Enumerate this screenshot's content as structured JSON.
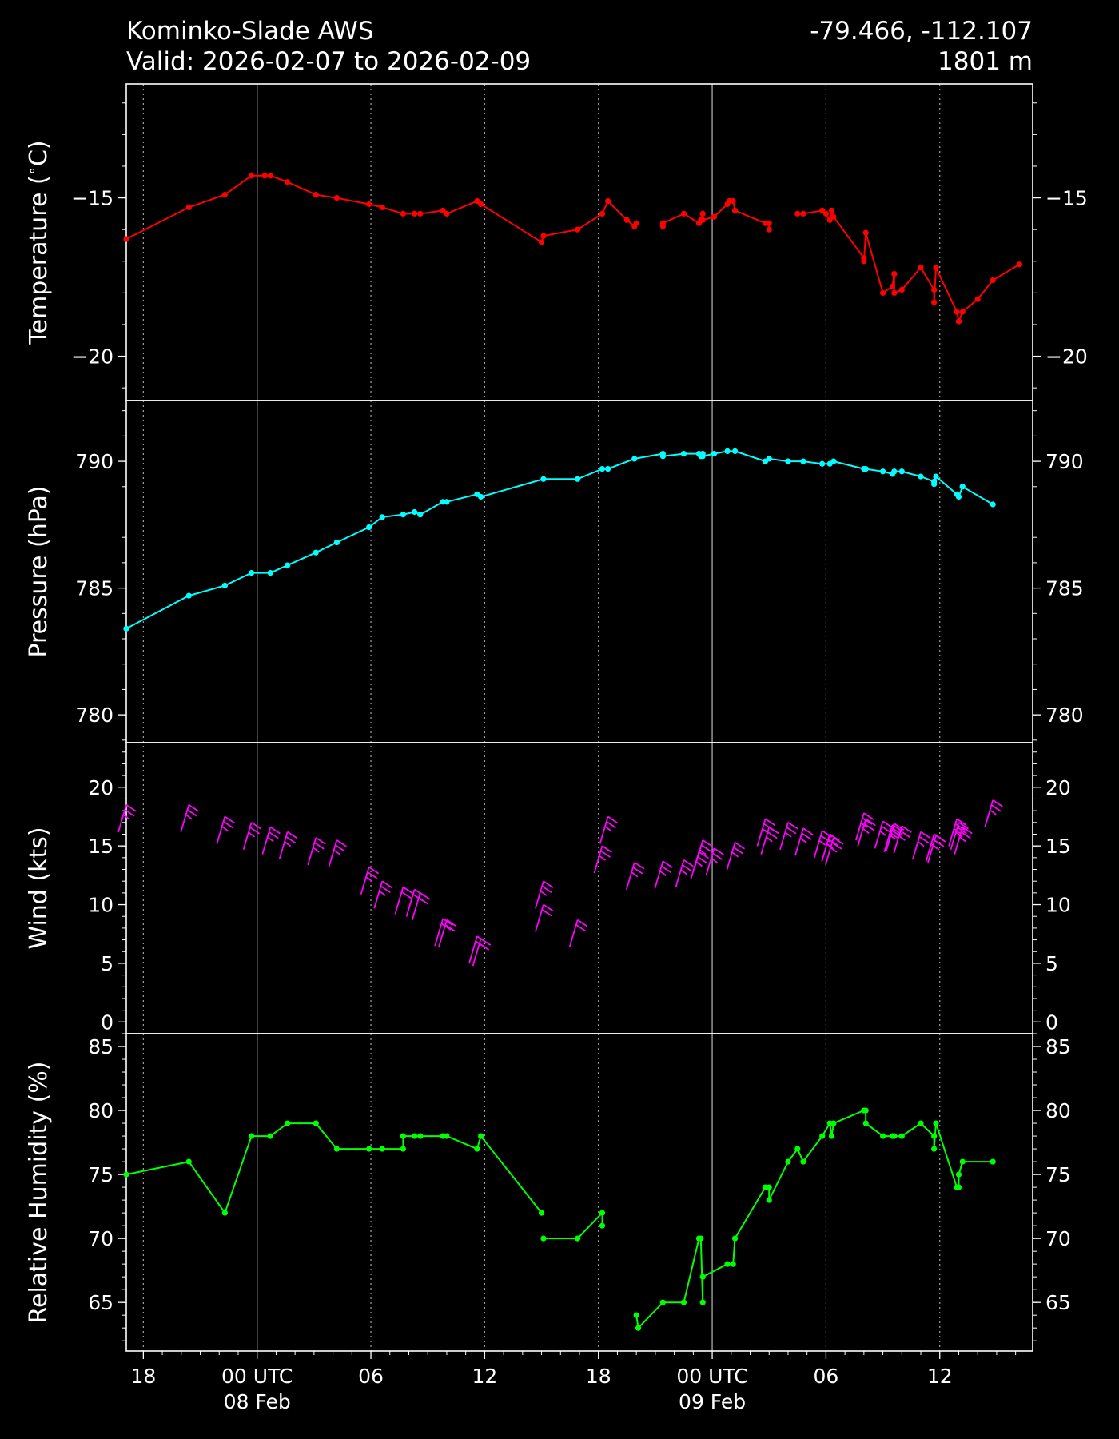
{
  "header": {
    "station": "Kominko-Slade AWS",
    "valid": "Valid: 2026-02-07 to 2026-02-09",
    "coords": "-79.466, -112.107",
    "elevation": "1801 m"
  },
  "colors": {
    "background": "#000000",
    "axes": "#ffffff",
    "grid_major": "#a0a0a0",
    "grid_minor": "#a0a0a0",
    "temperature": "#ff0000",
    "pressure": "#00ffff",
    "wind": "#ff00ff",
    "humidity": "#00ff00"
  },
  "chart_data": {
    "type": "line",
    "shared_x": {
      "unit": "hours from 00 UTC 08 Feb 2026",
      "range": [
        -6.9,
        40.9
      ],
      "major_ticks": [
        {
          "value": -6,
          "label": "18"
        },
        {
          "value": 0,
          "label": "00 UTC",
          "sublabel": "08 Feb"
        },
        {
          "value": 6,
          "label": "06"
        },
        {
          "value": 12,
          "label": "12"
        },
        {
          "value": 18,
          "label": "18"
        },
        {
          "value": 24,
          "label": "00 UTC",
          "sublabel": "09 Feb"
        },
        {
          "value": 30,
          "label": "06"
        },
        {
          "value": 36,
          "label": "12"
        }
      ],
      "day_lines": [
        0,
        24
      ]
    },
    "panels": [
      {
        "id": "temperature",
        "type": "line",
        "ylabel": "Temperature ($^\\circ$C)",
        "ylabel_parts": [
          "Temperature (",
          "∘",
          "C)"
        ],
        "ylim": [
          -21.4,
          -11.4
        ],
        "yticks": [
          -15,
          -20
        ],
        "ytick_labels": [
          "−15",
          "−20"
        ],
        "minor_step": 1,
        "color": "#ff0000",
        "segments": [
          [
            [
              -6.9,
              -16.3
            ],
            [
              -3.6,
              -15.3
            ],
            [
              -1.7,
              -14.9
            ],
            [
              -0.3,
              -14.3
            ],
            [
              0.4,
              -14.3
            ],
            [
              0.7,
              -14.3
            ],
            [
              1.6,
              -14.5
            ],
            [
              3.1,
              -14.9
            ],
            [
              4.2,
              -15.0
            ],
            [
              5.9,
              -15.2
            ],
            [
              6.6,
              -15.3
            ],
            [
              7.7,
              -15.5
            ],
            [
              8.3,
              -15.5
            ],
            [
              8.6,
              -15.5
            ],
            [
              9.8,
              -15.4
            ],
            [
              10.0,
              -15.5
            ],
            [
              11.6,
              -15.1
            ],
            [
              11.8,
              -15.2
            ],
            [
              15.0,
              -16.4
            ],
            [
              15.1,
              -16.2
            ],
            [
              16.9,
              -16.0
            ],
            [
              18.2,
              -15.5
            ],
            [
              18.2,
              -15.5
            ],
            [
              18.5,
              -15.1
            ],
            [
              19.5,
              -15.7
            ],
            [
              19.9,
              -15.9
            ],
            [
              20.0,
              -15.8
            ]
          ],
          [
            [
              21.4,
              -15.9
            ],
            [
              21.4,
              -15.8
            ],
            [
              22.5,
              -15.5
            ],
            [
              23.3,
              -15.8
            ],
            [
              23.4,
              -15.7
            ],
            [
              23.5,
              -15.5
            ],
            [
              23.5,
              -15.7
            ],
            [
              24.1,
              -15.6
            ],
            [
              24.8,
              -15.2
            ],
            [
              24.9,
              -15.1
            ],
            [
              25.1,
              -15.1
            ],
            [
              25.2,
              -15.4
            ],
            [
              26.8,
              -15.8
            ],
            [
              27.0,
              -15.8
            ],
            [
              27.0,
              -16.0
            ]
          ],
          [
            [
              28.5,
              -15.5
            ],
            [
              28.8,
              -15.5
            ],
            [
              29.8,
              -15.4
            ],
            [
              30.0,
              -15.5
            ],
            [
              30.2,
              -15.7
            ],
            [
              30.3,
              -15.4
            ],
            [
              30.4,
              -15.6
            ],
            [
              32.0,
              -16.9
            ],
            [
              32.0,
              -17.0
            ],
            [
              32.1,
              -16.1
            ],
            [
              33.0,
              -18.0
            ],
            [
              33.5,
              -17.8
            ],
            [
              33.6,
              -17.4
            ],
            [
              33.6,
              -18.0
            ],
            [
              34.0,
              -17.9
            ],
            [
              35.0,
              -17.2
            ],
            [
              35.7,
              -17.9
            ],
            [
              35.7,
              -18.3
            ],
            [
              35.8,
              -17.2
            ],
            [
              36.9,
              -18.6
            ],
            [
              37.0,
              -18.9
            ],
            [
              37.0,
              -18.9
            ],
            [
              37.2,
              -18.6
            ],
            [
              38.0,
              -18.2
            ],
            [
              38.8,
              -17.6
            ],
            [
              40.2,
              -17.1
            ]
          ]
        ]
      },
      {
        "id": "pressure",
        "type": "line",
        "ylabel": "Pressure (hPa)",
        "ylim": [
          778.9,
          792.4
        ],
        "yticks": [
          790,
          785,
          780
        ],
        "ytick_labels": [
          "790",
          "785",
          "780"
        ],
        "minor_step": 1,
        "color": "#00ffff",
        "segments": [
          [
            [
              -6.9,
              783.4
            ],
            [
              -3.6,
              784.7
            ],
            [
              -1.7,
              785.1
            ],
            [
              -0.3,
              785.6
            ],
            [
              0.7,
              785.6
            ],
            [
              1.6,
              785.9
            ],
            [
              3.1,
              786.4
            ],
            [
              4.2,
              786.8
            ],
            [
              5.9,
              787.4
            ],
            [
              6.6,
              787.8
            ],
            [
              7.7,
              787.9
            ],
            [
              8.3,
              788.0
            ],
            [
              8.6,
              787.9
            ],
            [
              9.8,
              788.4
            ],
            [
              10.0,
              788.4
            ],
            [
              11.6,
              788.7
            ],
            [
              11.8,
              788.6
            ],
            [
              15.1,
              789.3
            ],
            [
              16.9,
              789.3
            ],
            [
              18.2,
              789.7
            ],
            [
              18.5,
              789.7
            ],
            [
              19.9,
              790.1
            ],
            [
              21.4,
              790.3
            ],
            [
              21.4,
              790.2
            ],
            [
              22.5,
              790.3
            ],
            [
              23.3,
              790.3
            ],
            [
              23.4,
              790.2
            ],
            [
              23.5,
              790.3
            ],
            [
              23.5,
              790.2
            ],
            [
              24.1,
              790.3
            ],
            [
              24.8,
              790.4
            ],
            [
              25.2,
              790.4
            ],
            [
              26.8,
              790.0
            ],
            [
              27.0,
              790.1
            ],
            [
              28.0,
              790.0
            ],
            [
              28.8,
              790.0
            ],
            [
              29.8,
              789.9
            ],
            [
              30.2,
              789.9
            ],
            [
              30.4,
              790.0
            ],
            [
              32.0,
              789.7
            ],
            [
              32.1,
              789.7
            ],
            [
              33.0,
              789.6
            ],
            [
              33.5,
              789.5
            ],
            [
              33.6,
              789.6
            ],
            [
              34.0,
              789.6
            ],
            [
              35.0,
              789.4
            ],
            [
              35.7,
              789.2
            ],
            [
              35.7,
              789.1
            ],
            [
              35.8,
              789.4
            ],
            [
              36.9,
              788.7
            ],
            [
              37.0,
              788.6
            ],
            [
              37.2,
              789.0
            ],
            [
              37.2,
              789.0
            ],
            [
              38.8,
              788.3
            ]
          ]
        ]
      },
      {
        "id": "wind",
        "type": "barbs",
        "ylabel": "Wind (kts)",
        "ylim": [
          -1.0,
          23.8
        ],
        "yticks": [
          20,
          15,
          10,
          5,
          0
        ],
        "ytick_labels": [
          "20",
          "15",
          "10",
          "5",
          "0"
        ],
        "minor_step": 1,
        "color": "#ff00ff",
        "barbs": [
          [
            -6.9,
            18.5
          ],
          [
            -3.6,
            18.5
          ],
          [
            -1.7,
            17.5
          ],
          [
            -0.3,
            17.0
          ],
          [
            0.7,
            16.6
          ],
          [
            1.6,
            16.2
          ],
          [
            3.1,
            15.7
          ],
          [
            4.2,
            15.5
          ],
          [
            5.9,
            13.2
          ],
          [
            6.6,
            12.0
          ],
          [
            7.7,
            11.5
          ],
          [
            8.3,
            11.3
          ],
          [
            8.6,
            11.0
          ],
          [
            9.8,
            8.8
          ],
          [
            10.0,
            8.7
          ],
          [
            11.6,
            7.3
          ],
          [
            11.8,
            7.1
          ],
          [
            15.1,
            10.0
          ],
          [
            15.1,
            12.0
          ],
          [
            16.9,
            8.7
          ],
          [
            18.2,
            15.0
          ],
          [
            18.5,
            17.5
          ],
          [
            19.9,
            13.6
          ],
          [
            21.4,
            13.7
          ],
          [
            22.5,
            13.8
          ],
          [
            23.3,
            14.5
          ],
          [
            23.5,
            15.5
          ],
          [
            24.1,
            14.8
          ],
          [
            25.2,
            15.3
          ],
          [
            26.8,
            17.3
          ],
          [
            27.0,
            16.6
          ],
          [
            28.0,
            17.0
          ],
          [
            28.8,
            16.5
          ],
          [
            29.8,
            16.3
          ],
          [
            30.2,
            16.0
          ],
          [
            30.4,
            15.7
          ],
          [
            32.0,
            17.8
          ],
          [
            32.1,
            17.3
          ],
          [
            33.0,
            17.1
          ],
          [
            33.5,
            16.8
          ],
          [
            33.6,
            16.9
          ],
          [
            34.0,
            16.7
          ],
          [
            35.0,
            16.2
          ],
          [
            35.7,
            16.0
          ],
          [
            35.8,
            15.9
          ],
          [
            36.9,
            17.3
          ],
          [
            37.0,
            17.0
          ],
          [
            37.2,
            16.6
          ],
          [
            38.8,
            18.9
          ]
        ]
      },
      {
        "id": "humidity",
        "type": "line",
        "ylabel": "Relative Humidity (%)",
        "ylim": [
          61.2,
          86.0
        ],
        "yticks": [
          85,
          80,
          75,
          70,
          65
        ],
        "ytick_labels": [
          "85",
          "80",
          "75",
          "70",
          "65"
        ],
        "minor_step": 1,
        "color": "#00ff00",
        "segments": [
          [
            [
              -6.9,
              75
            ],
            [
              -3.6,
              76
            ],
            [
              -1.7,
              72
            ],
            [
              -0.3,
              78
            ],
            [
              0.7,
              78
            ],
            [
              1.6,
              79
            ],
            [
              3.1,
              79
            ],
            [
              4.2,
              77
            ],
            [
              5.9,
              77
            ],
            [
              6.6,
              77
            ],
            [
              7.7,
              77
            ],
            [
              7.7,
              78
            ],
            [
              8.3,
              78
            ],
            [
              8.6,
              78
            ],
            [
              9.8,
              78
            ],
            [
              10.0,
              78
            ],
            [
              11.6,
              77
            ],
            [
              11.8,
              78
            ],
            [
              15.0,
              72
            ]
          ],
          [
            [
              15.1,
              70
            ],
            [
              16.9,
              70
            ],
            [
              18.2,
              72
            ],
            [
              18.2,
              71
            ]
          ],
          [
            [
              20.0,
              64
            ],
            [
              20.1,
              63
            ],
            [
              21.4,
              65
            ],
            [
              22.5,
              65
            ],
            [
              23.3,
              70
            ],
            [
              23.4,
              70
            ],
            [
              23.5,
              65
            ],
            [
              23.5,
              67
            ],
            [
              24.8,
              68
            ],
            [
              25.1,
              68
            ],
            [
              25.2,
              70
            ],
            [
              26.8,
              74
            ],
            [
              27.0,
              74
            ],
            [
              27.0,
              73
            ],
            [
              28.0,
              76
            ],
            [
              28.5,
              77
            ],
            [
              28.8,
              76
            ],
            [
              29.8,
              78
            ],
            [
              30.2,
              79
            ],
            [
              30.3,
              78
            ],
            [
              30.4,
              79
            ],
            [
              32.0,
              80
            ],
            [
              32.1,
              80
            ],
            [
              32.1,
              79
            ],
            [
              33.0,
              78
            ],
            [
              33.5,
              78
            ],
            [
              33.6,
              78
            ],
            [
              34.0,
              78
            ],
            [
              35.0,
              79
            ],
            [
              35.7,
              78
            ],
            [
              35.7,
              77
            ],
            [
              35.8,
              79
            ],
            [
              36.9,
              74
            ],
            [
              37.0,
              74
            ],
            [
              37.0,
              75
            ],
            [
              37.2,
              76
            ],
            [
              38.8,
              76
            ]
          ]
        ]
      }
    ]
  }
}
